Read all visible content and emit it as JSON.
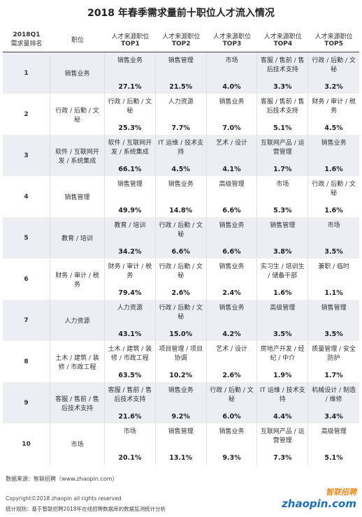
{
  "title": "2018 年春季需求量前十职位人才流入情况",
  "header": {
    "rank": [
      "2018Q1",
      "需求量排名"
    ],
    "position": "职位",
    "tops": [
      {
        "label": "人才来源职位",
        "top": "TOP1"
      },
      {
        "label": "人才来源职位",
        "top": "TOP2"
      },
      {
        "label": "人才来源职位",
        "top": "TOP3"
      },
      {
        "label": "人才来源职位",
        "top": "TOP4"
      },
      {
        "label": "人才来源职位",
        "top": "TOP5"
      }
    ]
  },
  "rows": [
    {
      "rank": "1",
      "position": "销售业务",
      "tops": [
        [
          "销售业务",
          "27.1%"
        ],
        [
          "销售管理",
          "21.5%"
        ],
        [
          "市场",
          "4.0%"
        ],
        [
          "客服 / 售前 / 售后技术支持",
          "3.3%"
        ],
        [
          "行政 / 后勤 / 文秘",
          "3.2%"
        ]
      ]
    },
    {
      "rank": "2",
      "position": "行政 / 后勤 / 文秘",
      "tops": [
        [
          "行政 / 后勤 / 文秘",
          "25.3%"
        ],
        [
          "人力资源",
          "7.7%"
        ],
        [
          "销售业务",
          "7.0%"
        ],
        [
          "客服 / 售前 / 售后技术支持",
          "5.1%"
        ],
        [
          "财务 / 审计 / 税务",
          "4.5%"
        ]
      ]
    },
    {
      "rank": "3",
      "position": "软件 / 互联网开发 / 系统集成",
      "tops": [
        [
          "软件 / 互联网开发 / 系统集成",
          "66.1%"
        ],
        [
          "IT 运维 / 技术支持",
          "4.5%"
        ],
        [
          "艺术 / 设计",
          "4.1%"
        ],
        [
          "互联网产品 / 运营管理",
          "1.7%"
        ],
        [
          "销售业务",
          "1.6%"
        ]
      ]
    },
    {
      "rank": "4",
      "position": "销售管理",
      "tops": [
        [
          "销售管理",
          "49.9%"
        ],
        [
          "销售业务",
          "14.8%"
        ],
        [
          "高级管理",
          "6.6%"
        ],
        [
          "市场",
          "5.3%"
        ],
        [
          "行政 / 后勤 / 文秘",
          "1.6%"
        ]
      ]
    },
    {
      "rank": "5",
      "position": "教育 / 培训",
      "tops": [
        [
          "教育 / 培训",
          "34.2%"
        ],
        [
          "行政 / 后勤 / 文秘",
          "6.6%"
        ],
        [
          "销售业务",
          "6.6%"
        ],
        [
          "销售管理",
          "3.8%"
        ],
        [
          "市场",
          "3.5%"
        ]
      ]
    },
    {
      "rank": "6",
      "position": "财务 / 审计 / 税务",
      "tops": [
        [
          "财务 / 审计 / 税务",
          "79.4%"
        ],
        [
          "行政 / 后勤 / 文秘",
          "2.6%"
        ],
        [
          "销售业务",
          "2.4%"
        ],
        [
          "实习生 / 培训生 / 储备干部",
          "1.6%"
        ],
        [
          "兼职 / 临时",
          "1.1%"
        ]
      ]
    },
    {
      "rank": "7",
      "position": "人力资源",
      "tops": [
        [
          "人力资源",
          "43.1%"
        ],
        [
          "行政 / 后勤 / 文秘",
          "15.0%"
        ],
        [
          "销售业务",
          "4.2%"
        ],
        [
          "高级管理",
          "3.5%"
        ],
        [
          "销售管理",
          "3.5%"
        ]
      ]
    },
    {
      "rank": "8",
      "position": "土木 / 建筑 / 装修 / 市政工程",
      "tops": [
        [
          "土木 / 建筑 / 装修 / 市政工程",
          "63.5%"
        ],
        [
          "项目管理 / 项目协调",
          "10.2%"
        ],
        [
          "艺术 / 设计",
          "2.6%"
        ],
        [
          "房地产开发 / 经纪 / 中介",
          "1.9%"
        ],
        [
          "质量管理 / 安全防护",
          "1.7%"
        ]
      ]
    },
    {
      "rank": "9",
      "position": "客服 / 售前 / 售后技术支持",
      "tops": [
        [
          "客服 / 售前 / 售后技术支持",
          "21.6%"
        ],
        [
          "销售业务",
          "9.2%"
        ],
        [
          "行政 / 后勤 / 文秘",
          "6.0%"
        ],
        [
          "IT 运维 / 技术支持",
          "4.4%"
        ],
        [
          "机械设计 / 制造 / 维修",
          "3.4%"
        ]
      ]
    },
    {
      "rank": "10",
      "position": "市场",
      "tops": [
        [
          "市场",
          "20.1%"
        ],
        [
          "销售管理",
          "13.1%"
        ],
        [
          "销售业务",
          "9.3%"
        ],
        [
          "互联网产品 / 运营管理",
          "7.3%"
        ],
        [
          "高级管理",
          "5.1%"
        ]
      ]
    }
  ],
  "footer": {
    "source": "数据来源：智联招聘（www.zhaopin.com）",
    "copyright": "Copyright©2018 zhaopin all rights reserved",
    "rule": "统计规则：基于智联招聘2018年在线招聘数据库的数据监测统计分析"
  },
  "logo": {
    "cn": "智联招聘",
    "en": "zhaopin.com"
  }
}
